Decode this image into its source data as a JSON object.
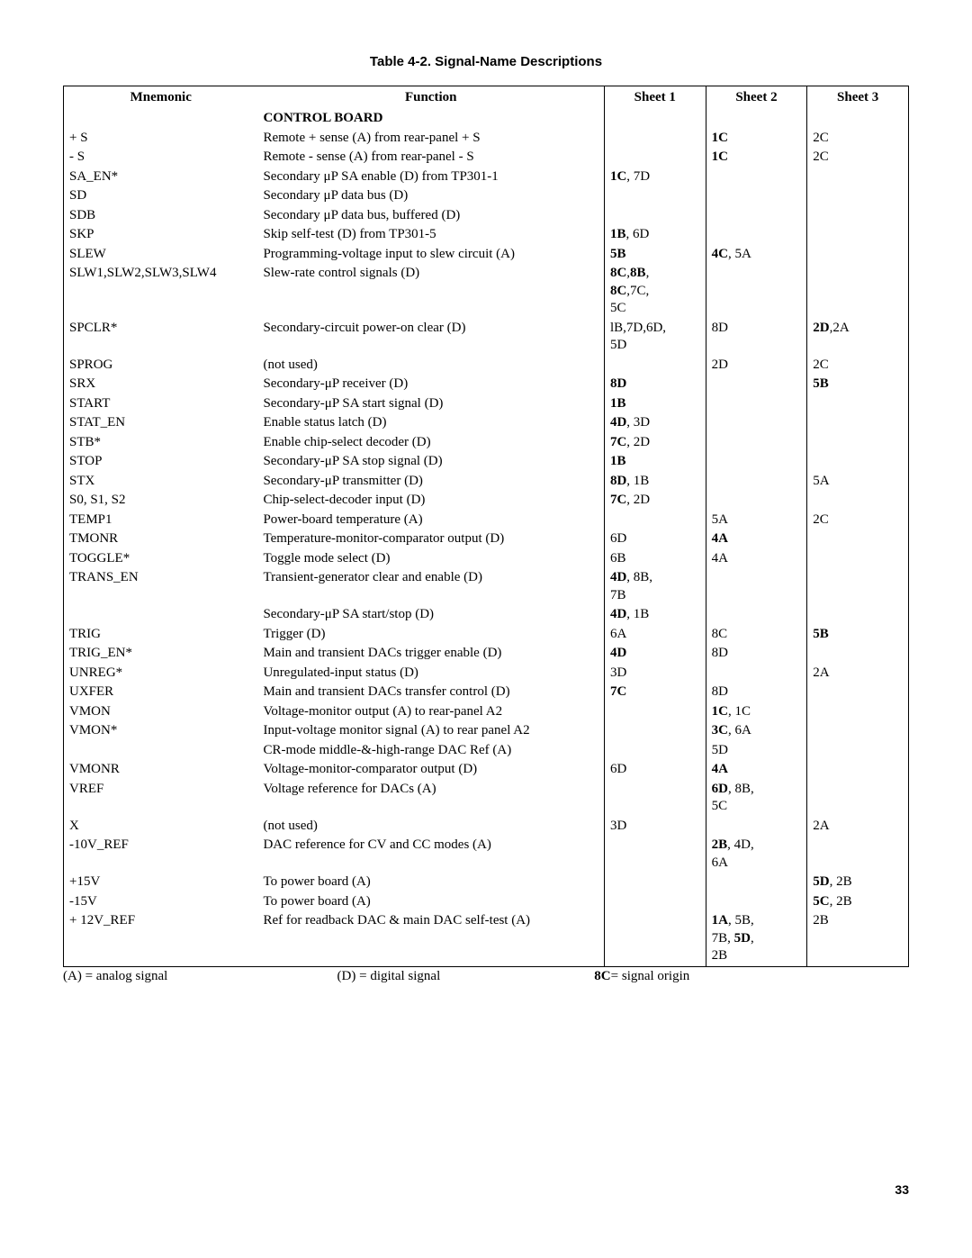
{
  "title": "Table 4-2.  Signal-Name Descriptions",
  "headers": {
    "mnemonic": "Mnemonic",
    "function": "Function",
    "sheet1": "Sheet 1",
    "sheet2": "Sheet 2",
    "sheet3": "Sheet 3"
  },
  "section": "CONTROL BOARD",
  "rows": [
    {
      "m": "+ S",
      "f": "Remote + sense (A) from rear-panel + S",
      "s1": "",
      "s2": "<b>1C</b>",
      "s3": "2C"
    },
    {
      "m": "- S",
      "f": "Remote - sense (A) from rear-panel - S",
      "s1": "",
      "s2": "<b>1C</b>",
      "s3": "2C"
    },
    {
      "m": "SA_EN*",
      "f": "Secondary &mu;P SA enable (D) from TP301-1",
      "s1": "<b>1C</b>, 7D",
      "s2": "",
      "s3": ""
    },
    {
      "m": "SD",
      "f": "Secondary &mu;P data bus (D)",
      "s1": "",
      "s2": "",
      "s3": ""
    },
    {
      "m": "SDB",
      "f": "Secondary &mu;P data bus, buffered (D)",
      "s1": "",
      "s2": "",
      "s3": ""
    },
    {
      "m": "SKP",
      "f": "Skip self-test (D) from TP301-5",
      "s1": "<b>1B</b>, 6D",
      "s2": "",
      "s3": ""
    },
    {
      "m": "SLEW",
      "f": "Programming-voltage input to slew circuit (A)",
      "s1": "<b>5B</b>",
      "s2": "<b>4C</b>, 5A",
      "s3": ""
    },
    {
      "m": "SLW1,SLW2,SLW3,SLW4",
      "f": "Slew-rate control signals (D)",
      "s1": "<b>8C</b>,<b>8B</b>,<br><b>8C</b>,7C,<br>5C",
      "s2": "",
      "s3": ""
    },
    {
      "m": "SPCLR*",
      "f": "Secondary-circuit power-on clear (D)",
      "s1": "lB,7D,6D,<br>5D",
      "s2": "8D",
      "s3": "<b>2D</b>,2A"
    },
    {
      "m": "SPROG",
      "f": "(not used)",
      "s1": "",
      "s2": "2D",
      "s3": "2C"
    },
    {
      "m": "SRX",
      "f": "Secondary-&mu;P receiver (D)",
      "s1": "<b>8D</b>",
      "s2": "",
      "s3": "<b>5B</b>"
    },
    {
      "m": "START",
      "f": "Secondary-&mu;P SA start signal (D)",
      "s1": "<b>1B</b>",
      "s2": "",
      "s3": ""
    },
    {
      "m": "STAT_EN",
      "f": "Enable status latch (D)",
      "s1": "<b>4D</b>, 3D",
      "s2": "",
      "s3": ""
    },
    {
      "m": "STB*",
      "f": "Enable chip-select decoder (D)",
      "s1": "<b>7C</b>, 2D",
      "s2": "",
      "s3": ""
    },
    {
      "m": "STOP",
      "f": "Secondary-&mu;P SA stop signal (D)",
      "s1": "<b>1B</b>",
      "s2": "",
      "s3": ""
    },
    {
      "m": "STX",
      "f": "Secondary-&mu;P transmitter (D)",
      "s1": "<b>8D</b>, 1B",
      "s2": "",
      "s3": "5A"
    },
    {
      "m": "S0, S1, S2",
      "f": "Chip-select-decoder input (D)",
      "s1": "<b>7C</b>, 2D",
      "s2": "",
      "s3": ""
    },
    {
      "m": "TEMP1",
      "f": "Power-board temperature (A)",
      "s1": "",
      "s2": "5A",
      "s3": "2C"
    },
    {
      "m": "TMONR",
      "f": "Temperature-monitor-comparator output (D)",
      "s1": "6D",
      "s2": "<b>4A</b>",
      "s3": ""
    },
    {
      "m": "TOGGLE*",
      "f": "Toggle mode select (D)",
      "s1": "6B",
      "s2": "4A",
      "s3": ""
    },
    {
      "m": "TRANS_EN",
      "f": "Transient-generator clear and enable (D)",
      "s1": "<b>4D</b>, 8B,<br>7B",
      "s2": "",
      "s3": ""
    },
    {
      "m": "",
      "f": "Secondary-&mu;P SA start/stop (D)",
      "s1": "<b>4D</b>, 1B",
      "s2": "",
      "s3": ""
    },
    {
      "m": "TRIG",
      "f": "Trigger (D)",
      "s1": "6A",
      "s2": "8C",
      "s3": "<b>5B</b>"
    },
    {
      "m": "TRIG_EN*",
      "f": "Main and transient DACs trigger enable (D)",
      "s1": "<b>4D</b>",
      "s2": "8D",
      "s3": ""
    },
    {
      "m": "UNREG*",
      "f": "Unregulated-input status (D)",
      "s1": "3D",
      "s2": "",
      "s3": "2A"
    },
    {
      "m": "UXFER",
      "f": "Main and transient DACs transfer control (D)",
      "s1": "<b>7C</b>",
      "s2": "8D",
      "s3": ""
    },
    {
      "m": "VMON",
      "f": "Voltage-monitor output (A) to rear-panel A2",
      "s1": "",
      "s2": "<b>1C</b>, 1C",
      "s3": ""
    },
    {
      "m": "VMON*",
      "f": "Input-voltage monitor signal (A) to rear panel A2",
      "s1": "",
      "s2": "<b>3C</b>, 6A",
      "s3": ""
    },
    {
      "m": "",
      "f": "CR-mode middle-&amp;-high-range DAC Ref (A)",
      "s1": "",
      "s2": "5D",
      "s3": ""
    },
    {
      "m": "VMONR",
      "f": "Voltage-monitor-comparator output (D)",
      "s1": "6D",
      "s2": "<b>4A</b>",
      "s3": ""
    },
    {
      "m": "VREF",
      "f": "Voltage reference for DACs (A)",
      "s1": "",
      "s2": "<b>6D</b>, 8B,<br>5C",
      "s3": ""
    },
    {
      "m": "X",
      "f": "(not used)",
      "s1": "3D",
      "s2": "",
      "s3": "2A"
    },
    {
      "m": "-10V_REF",
      "f": "DAC reference for CV and CC modes (A)",
      "s1": "",
      "s2": "<b>2B</b>, 4D,<br>6A",
      "s3": ""
    },
    {
      "m": "+15V",
      "f": "To power board (A)",
      "s1": "",
      "s2": "",
      "s3": "<b>5D</b>, 2B"
    },
    {
      "m": "-15V",
      "f": "To power board (A)",
      "s1": "",
      "s2": "",
      "s3": "<b>5C</b>, 2B"
    },
    {
      "m": "+ 12V_REF",
      "f": "Ref for readback DAC &amp; main DAC self-test (A)",
      "s1": "",
      "s2": "<b>1A</b>, 5B,<br>7B, <b>5D</b>,<br>2B",
      "s3": "2B"
    }
  ],
  "legend": {
    "a": "(A) = analog signal",
    "d": "(D) = digital signal",
    "s": " = signal origin",
    "sbold": "8C"
  },
  "pagenum": "33"
}
